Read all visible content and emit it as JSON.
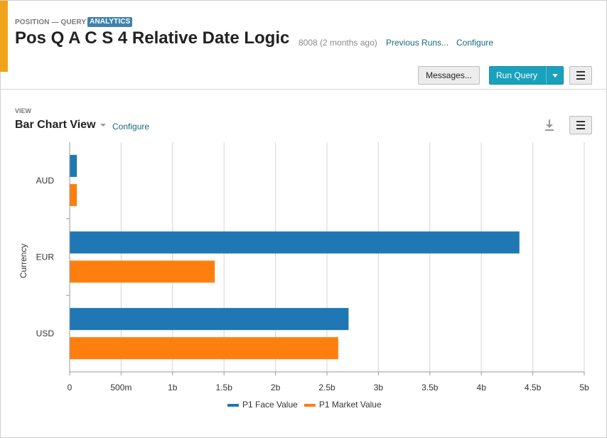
{
  "header": {
    "eyebrow": "POSITION — QUERY",
    "badge": "ANALYTICS",
    "title": "Pos Q A C S 4 Relative Date Logic",
    "meta": "8008 (2 months ago)",
    "previous_runs": "Previous Runs...",
    "configure": "Configure",
    "messages_button": "Messages...",
    "run_query_button": "Run Query"
  },
  "view": {
    "eyebrow": "VIEW",
    "title": "Bar Chart View",
    "configure": "Configure"
  },
  "colors": {
    "accent": "#f0a31d",
    "badge": "#3f82ad",
    "run_button": "#1aa1bd",
    "link": "#1a6a79"
  },
  "icons": [
    "download-icon",
    "menu-icon",
    "caret-down-icon"
  ],
  "chart_data": {
    "type": "bar",
    "orientation": "horizontal",
    "categories": [
      "AUD",
      "EUR",
      "USD"
    ],
    "series": [
      {
        "name": "P1 Face Value",
        "color": "#1f77b4",
        "values": [
          70000000,
          4370000000,
          2710000000
        ]
      },
      {
        "name": "P1 Market Value",
        "color": "#ff7f0e",
        "values": [
          70000000,
          1410000000,
          2610000000
        ]
      }
    ],
    "ylabel": "Currency",
    "xlim": [
      0,
      5000000000
    ],
    "x_ticks": [
      {
        "value": 0,
        "label": "0"
      },
      {
        "value": 500000000,
        "label": "500m"
      },
      {
        "value": 1000000000,
        "label": "1b"
      },
      {
        "value": 1500000000,
        "label": "1.5b"
      },
      {
        "value": 2000000000,
        "label": "2b"
      },
      {
        "value": 2500000000,
        "label": "2.5b"
      },
      {
        "value": 3000000000,
        "label": "3b"
      },
      {
        "value": 3500000000,
        "label": "3.5b"
      },
      {
        "value": 4000000000,
        "label": "4b"
      },
      {
        "value": 4500000000,
        "label": "4.5b"
      },
      {
        "value": 5000000000,
        "label": "5b"
      }
    ],
    "grid": true,
    "legend_position": "bottom"
  }
}
